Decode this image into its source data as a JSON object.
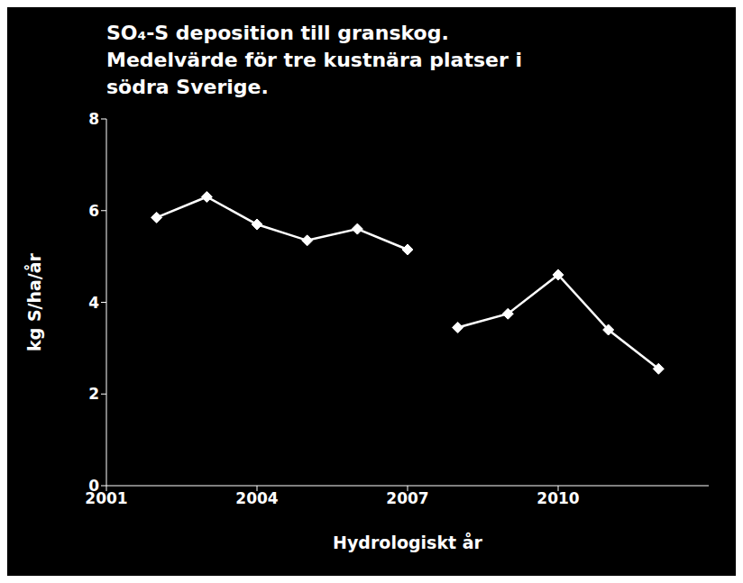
{
  "chart_data": {
    "type": "line",
    "title": "SO₄-S deposition till granskog.\nMedelvärde för tre kustnära platser i\nsödra Sverige.",
    "xlabel": "Hydrologiskt år",
    "ylabel": "kg S/ha/år",
    "x": [
      2002,
      2003,
      2004,
      2005,
      2006,
      2007,
      2008,
      2009,
      2010,
      2011,
      2012
    ],
    "series": [
      {
        "color": "#ffffff",
        "marker": "diamond",
        "values": [
          5.85,
          6.3,
          5.7,
          5.35,
          5.6,
          5.15,
          null,
          null,
          null,
          null,
          null
        ]
      },
      {
        "color": "#ffffff",
        "marker": "diamond",
        "values": [
          null,
          null,
          null,
          null,
          null,
          null,
          3.45,
          3.75,
          4.6,
          3.4,
          2.55
        ]
      }
    ],
    "xlim": [
      2001,
      2013
    ],
    "xticks": [
      2001,
      2004,
      2007,
      2010
    ],
    "ylim": [
      0,
      8
    ],
    "yticks": [
      0,
      2,
      4,
      6,
      8
    ],
    "grid": false
  }
}
